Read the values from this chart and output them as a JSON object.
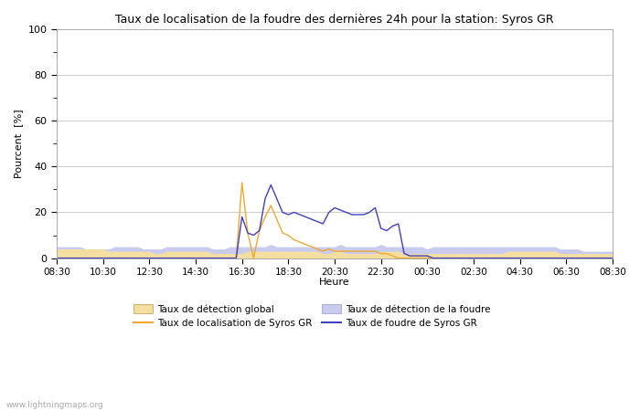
{
  "title": "Taux de localisation de la foudre des dernières 24h pour la station: Syros GR",
  "ylabel": "Pourcent  [%]",
  "xlabel": "Heure",
  "watermark": "www.lightningmaps.org",
  "ylim": [
    0,
    100
  ],
  "yticks": [
    0,
    20,
    40,
    60,
    80,
    100
  ],
  "xtick_labels": [
    "08:30",
    "10:30",
    "12:30",
    "14:30",
    "16:30",
    "18:30",
    "20:30",
    "22:30",
    "00:30",
    "02:30",
    "04:30",
    "06:30",
    "08:30"
  ],
  "grid_color": "#cccccc",
  "legend": [
    {
      "label": "Taux de détection global",
      "type": "fill",
      "color": "#f5dfa0",
      "edge_color": "#c8b870"
    },
    {
      "label": "Taux de localisation de Syros GR",
      "type": "line",
      "color": "#f0a830"
    },
    {
      "label": "Taux de détection de la foudre",
      "type": "fill",
      "color": "#c8caee",
      "edge_color": "#b0b0d0"
    },
    {
      "label": "Taux de foudre de Syros GR",
      "type": "line",
      "color": "#4040c0"
    }
  ],
  "x_hours": [
    0.0,
    0.25,
    0.5,
    0.75,
    1.0,
    1.25,
    1.5,
    1.75,
    2.0,
    2.25,
    2.5,
    2.75,
    3.0,
    3.25,
    3.5,
    3.75,
    4.0,
    4.25,
    4.5,
    4.75,
    5.0,
    5.25,
    5.5,
    5.75,
    6.0,
    6.25,
    6.5,
    6.75,
    7.0,
    7.25,
    7.5,
    7.75,
    8.0,
    8.25,
    8.5,
    8.75,
    9.0,
    9.25,
    9.5,
    9.75,
    10.0,
    10.25,
    10.5,
    10.75,
    11.0,
    11.25,
    11.5,
    11.75,
    12.0,
    12.25,
    12.5,
    12.75,
    13.0,
    13.25,
    13.5,
    13.75,
    14.0,
    14.25,
    14.5,
    14.75,
    15.0,
    15.25,
    15.5,
    15.75,
    16.0,
    16.25,
    16.5,
    16.75,
    17.0,
    17.25,
    17.5,
    17.75,
    18.0,
    18.25,
    18.5,
    18.75,
    19.0,
    19.25,
    19.5,
    19.75,
    20.0,
    20.25,
    20.5,
    20.75,
    21.0,
    21.25,
    21.5,
    21.75,
    22.0,
    22.25,
    22.5,
    22.75,
    23.0,
    23.25,
    23.5,
    23.75,
    24.0
  ],
  "global_detect": [
    4,
    4,
    4,
    4,
    4,
    4,
    4,
    4,
    4,
    3,
    3,
    3,
    3,
    3,
    3,
    3,
    3,
    2,
    2,
    3,
    3,
    3,
    3,
    3,
    3,
    3,
    3,
    2,
    2,
    2,
    2,
    2,
    2,
    3,
    3,
    3,
    3,
    3,
    3,
    3,
    3,
    3,
    3,
    3,
    3,
    3,
    2,
    2,
    3,
    3,
    2,
    2,
    2,
    2,
    2,
    2,
    3,
    3,
    3,
    3,
    2,
    2,
    2,
    2,
    2,
    2,
    2,
    2,
    2,
    2,
    2,
    2,
    2,
    2,
    2,
    2,
    2,
    2,
    3,
    3,
    3,
    3,
    3,
    3,
    3,
    3,
    3,
    2,
    2,
    2,
    2,
    2,
    2,
    2,
    2,
    2,
    2
  ],
  "loc_syros": [
    0,
    0,
    0,
    0,
    0,
    0,
    0,
    0,
    0,
    0,
    0,
    0,
    0,
    0,
    0,
    0,
    0,
    0,
    0,
    0,
    0,
    0,
    0,
    0,
    0,
    0,
    0,
    0,
    0,
    0,
    0,
    0,
    33,
    11,
    0,
    12,
    18,
    23,
    17,
    11,
    10,
    8,
    7,
    6,
    5,
    4,
    3,
    4,
    3,
    3,
    3,
    3,
    3,
    3,
    3,
    3,
    2,
    2,
    1,
    0,
    0,
    0,
    0,
    0,
    0,
    0,
    0,
    0,
    0,
    0,
    0,
    0,
    0,
    0,
    0,
    0,
    0,
    0,
    0,
    0,
    0,
    0,
    0,
    0,
    0,
    0,
    0,
    0,
    0,
    0,
    0,
    0,
    0,
    0,
    0,
    0,
    0
  ],
  "foudre_detect": [
    5,
    5,
    5,
    5,
    5,
    4,
    4,
    4,
    4,
    4,
    5,
    5,
    5,
    5,
    5,
    4,
    4,
    4,
    4,
    5,
    5,
    5,
    5,
    5,
    5,
    5,
    5,
    4,
    4,
    4,
    5,
    5,
    5,
    5,
    5,
    5,
    5,
    6,
    5,
    5,
    5,
    5,
    5,
    5,
    5,
    5,
    5,
    5,
    5,
    6,
    5,
    5,
    5,
    5,
    5,
    5,
    6,
    5,
    5,
    5,
    5,
    5,
    5,
    5,
    4,
    5,
    5,
    5,
    5,
    5,
    5,
    5,
    5,
    5,
    5,
    5,
    5,
    5,
    5,
    5,
    5,
    5,
    5,
    5,
    5,
    5,
    5,
    4,
    4,
    4,
    4,
    3,
    3,
    3,
    3,
    3,
    3
  ],
  "foudre_syros": [
    0,
    0,
    0,
    0,
    0,
    0,
    0,
    0,
    0,
    0,
    0,
    0,
    0,
    0,
    0,
    0,
    0,
    0,
    0,
    0,
    0,
    0,
    0,
    0,
    0,
    0,
    0,
    0,
    0,
    0,
    0,
    0,
    18,
    11,
    10,
    12,
    26,
    32,
    26,
    20,
    19,
    20,
    19,
    18,
    17,
    16,
    15,
    20,
    22,
    21,
    20,
    19,
    19,
    19,
    20,
    22,
    13,
    12,
    14,
    15,
    2,
    1,
    1,
    1,
    1,
    0,
    0,
    0,
    0,
    0,
    0,
    0,
    0,
    0,
    0,
    0,
    0,
    0,
    0,
    0,
    0,
    0,
    0,
    0,
    0,
    0,
    0,
    0,
    0,
    0,
    0,
    0,
    0,
    0,
    0,
    0,
    0
  ]
}
